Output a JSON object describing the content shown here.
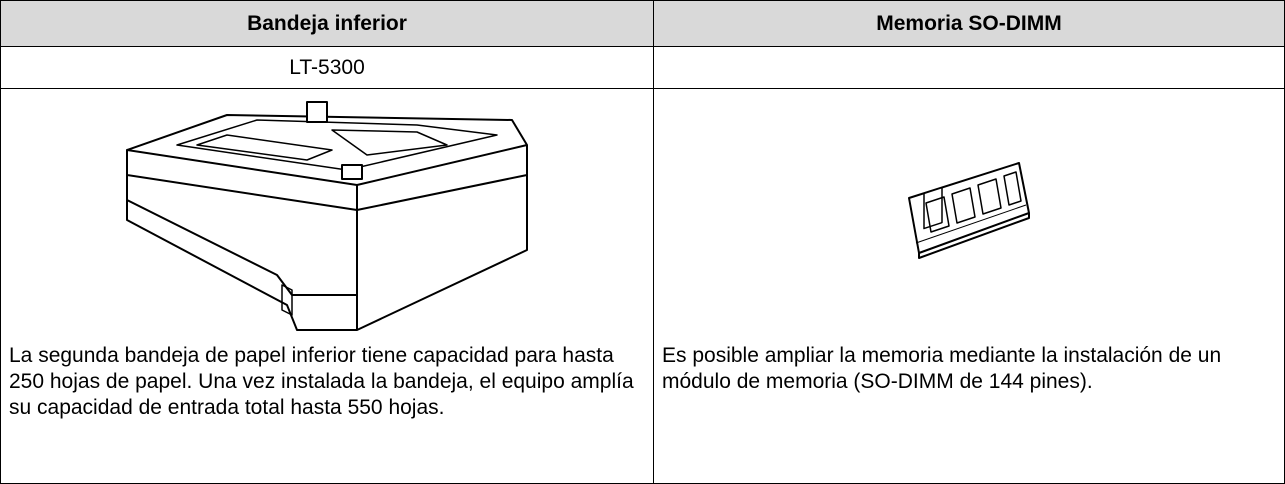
{
  "table": {
    "columns": [
      {
        "header": "Bandeja inferior",
        "model": "LT-5300",
        "description": "La segunda bandeja de papel inferior tiene capacidad para hasta 250 hojas de papel. Una vez instalada la bandeja, el equipo amplía su capacidad de entrada total hasta 550 hojas."
      },
      {
        "header": "Memoria SO-DIMM",
        "description": "Es posible ampliar la memoria mediante la instalación de un módulo de memoria (SO-DIMM de 144 pines)."
      }
    ]
  }
}
